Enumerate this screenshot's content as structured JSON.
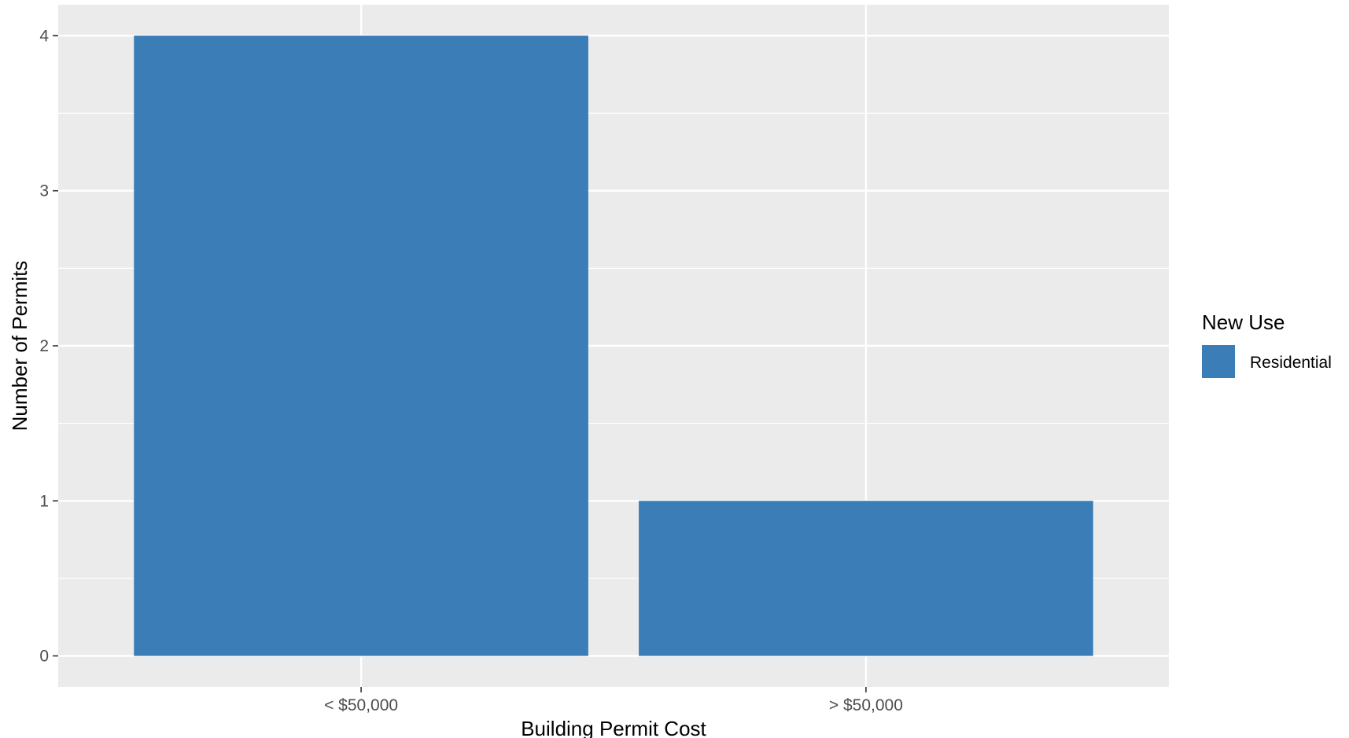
{
  "chart_data": {
    "type": "bar",
    "categories": [
      "< $50,000",
      "> $50,000"
    ],
    "series": [
      {
        "name": "Residential",
        "values": [
          4,
          1
        ]
      }
    ],
    "xlabel": "Building Permit Cost",
    "ylabel": "Number of Permits",
    "ylim": [
      -0.2,
      4.2
    ],
    "yticks": [
      0,
      1,
      2,
      3,
      4
    ],
    "grid": true,
    "legend": {
      "title": "New Use",
      "placement": "right",
      "entries": [
        "Residential"
      ]
    },
    "colors": {
      "panel_background": "#ebebeb",
      "grid_line": "#ffffff",
      "bar_fill": "#3a7db7"
    }
  }
}
